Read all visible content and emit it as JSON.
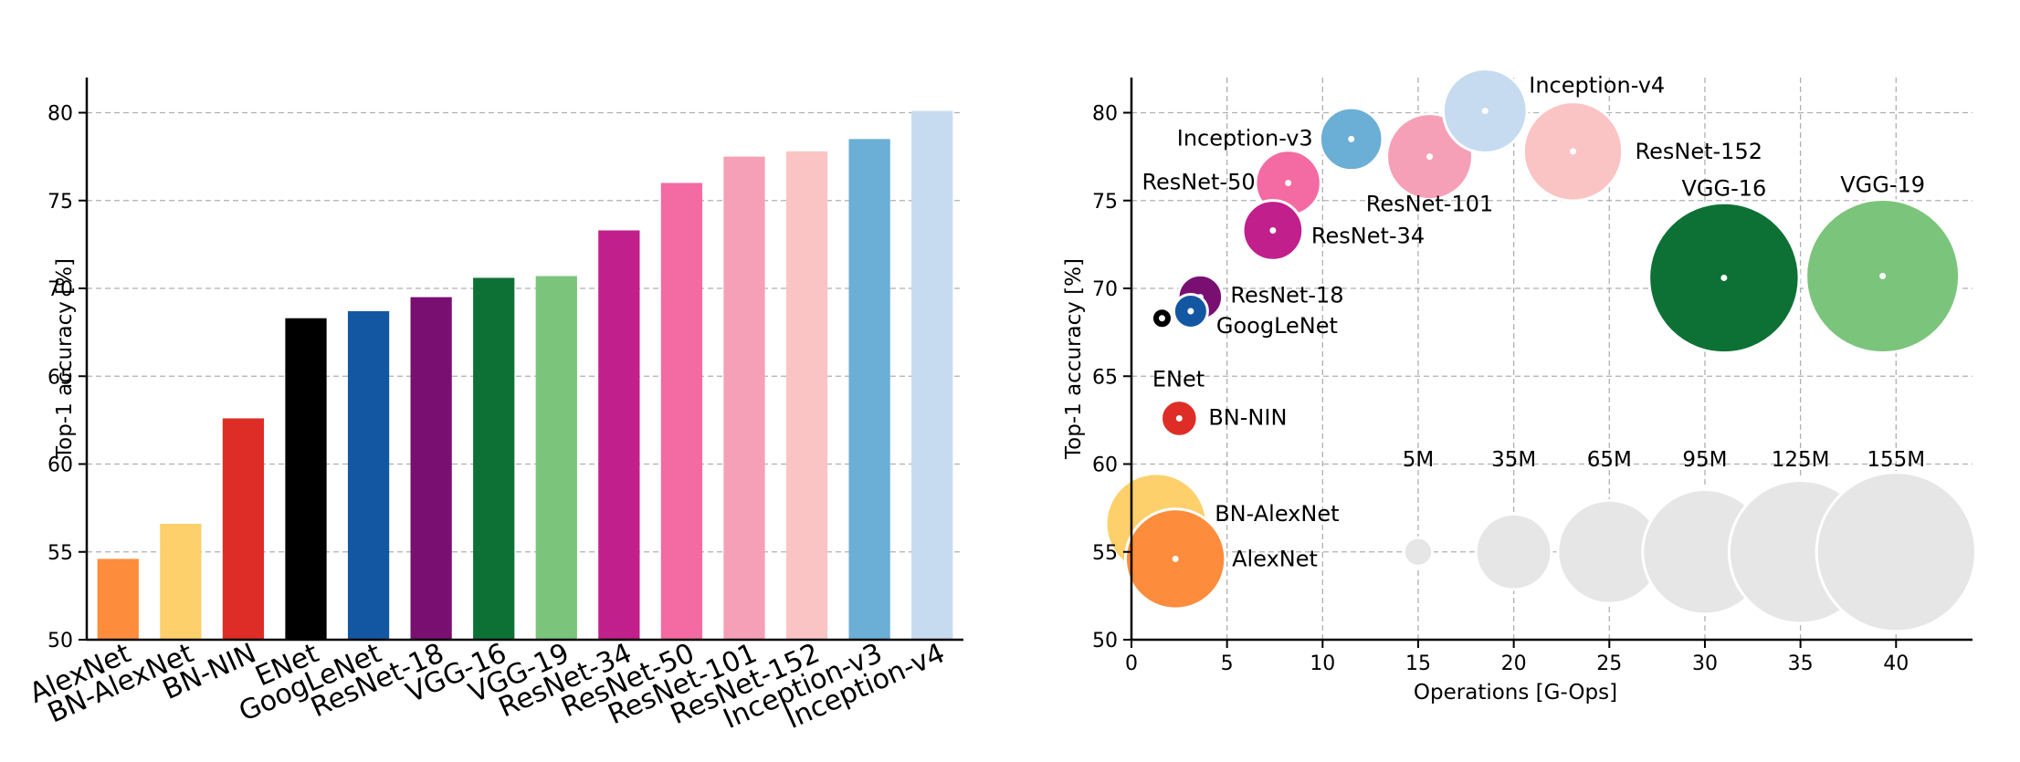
{
  "chart_data": [
    {
      "type": "bar",
      "ylabel": "Top-1 accuracy [%]",
      "ylim": [
        50,
        82
      ],
      "yticks": [
        50,
        55,
        60,
        65,
        70,
        75,
        80
      ],
      "grid": "y-dashed",
      "categories": [
        "AlexNet",
        "BN-AlexNet",
        "BN-NIN",
        "ENet",
        "GoogLeNet",
        "ResNet-18",
        "VGG-16",
        "VGG-19",
        "ResNet-34",
        "ResNet-50",
        "ResNet-101",
        "ResNet-152",
        "Inception-v3",
        "Inception-v4"
      ],
      "values": [
        54.6,
        56.6,
        62.6,
        68.3,
        68.7,
        69.5,
        70.6,
        70.7,
        73.3,
        76.0,
        77.5,
        77.8,
        78.5,
        80.1
      ],
      "colors": [
        "#fd8d3c",
        "#fdd06b",
        "#de2d26",
        "#000000",
        "#1357a3",
        "#7a0f72",
        "#0d7135",
        "#7bc47b",
        "#c11f8b",
        "#f46aa3",
        "#f6a0b8",
        "#fbc4c4",
        "#6baed6",
        "#c6dbef"
      ]
    },
    {
      "type": "scatter",
      "xlabel": "Operations [G-Ops]",
      "ylabel": "Top-1 accuracy [%]",
      "xlim": [
        0,
        44
      ],
      "ylim": [
        50,
        82
      ],
      "xticks": [
        0,
        5,
        10,
        15,
        20,
        25,
        30,
        35,
        40
      ],
      "yticks": [
        50,
        55,
        60,
        65,
        70,
        75,
        80
      ],
      "grid": "both-dashed",
      "points": [
        {
          "label": "AlexNet",
          "x": 2.3,
          "y": 54.6,
          "params_m": 61,
          "color": "#fd8d3c"
        },
        {
          "label": "BN-AlexNet",
          "x": 1.3,
          "y": 56.6,
          "params_m": 62,
          "color": "#fdd06b"
        },
        {
          "label": "BN-NIN",
          "x": 2.5,
          "y": 62.6,
          "params_m": 8,
          "color": "#de2d26"
        },
        {
          "label": "ENet",
          "x": 1.6,
          "y": 68.3,
          "params_m": 0.4,
          "color": "#000000"
        },
        {
          "label": "GoogLeNet",
          "x": 3.1,
          "y": 68.7,
          "params_m": 7,
          "color": "#1357a3"
        },
        {
          "label": "ResNet-18",
          "x": 3.6,
          "y": 69.5,
          "params_m": 12,
          "color": "#7a0f72"
        },
        {
          "label": "VGG-16",
          "x": 31.0,
          "y": 70.6,
          "params_m": 138,
          "color": "#0d7135"
        },
        {
          "label": "VGG-19",
          "x": 39.3,
          "y": 70.7,
          "params_m": 144,
          "color": "#7bc47b"
        },
        {
          "label": "ResNet-34",
          "x": 7.4,
          "y": 73.3,
          "params_m": 22,
          "color": "#c11f8b"
        },
        {
          "label": "ResNet-50",
          "x": 8.2,
          "y": 76.0,
          "params_m": 26,
          "color": "#f46aa3"
        },
        {
          "label": "ResNet-101",
          "x": 15.6,
          "y": 77.5,
          "params_m": 45,
          "color": "#f6a0b8"
        },
        {
          "label": "ResNet-152",
          "x": 23.1,
          "y": 77.8,
          "params_m": 60,
          "color": "#fbc4c4"
        },
        {
          "label": "Inception-v3",
          "x": 11.5,
          "y": 78.5,
          "params_m": 24,
          "color": "#6baed6"
        },
        {
          "label": "Inception-v4",
          "x": 18.5,
          "y": 80.1,
          "params_m": 43,
          "color": "#c6dbef"
        }
      ],
      "size_legend": {
        "y": 55,
        "color": "#e6e6e6",
        "items": [
          {
            "label": "5M",
            "x": 15,
            "params_m": 5
          },
          {
            "label": "35M",
            "x": 20,
            "params_m": 35
          },
          {
            "label": "65M",
            "x": 25,
            "params_m": 65
          },
          {
            "label": "95M",
            "x": 30,
            "params_m": 95
          },
          {
            "label": "125M",
            "x": 35,
            "params_m": 125
          },
          {
            "label": "155M",
            "x": 40,
            "params_m": 155
          }
        ]
      }
    }
  ]
}
